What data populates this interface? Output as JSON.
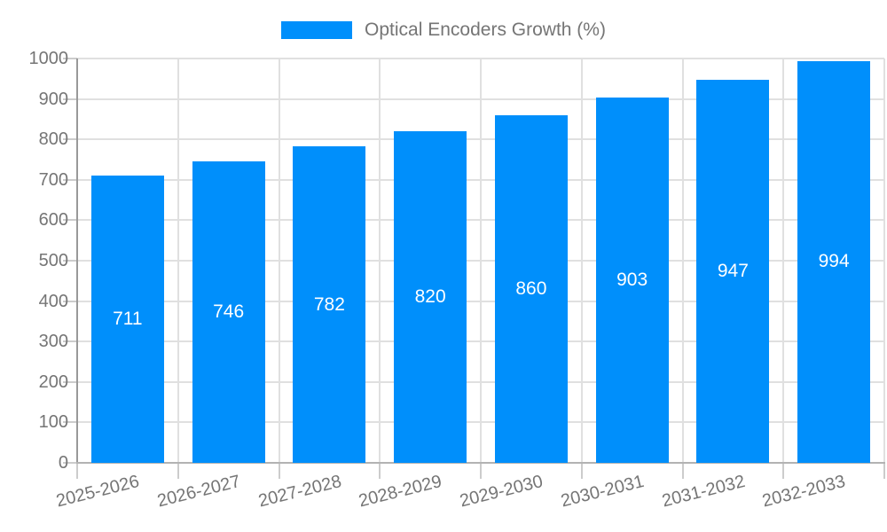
{
  "legend": {
    "label": "Optical Encoders Growth (%)"
  },
  "chart_data": {
    "type": "bar",
    "title": "",
    "categories": [
      "2025-2026",
      "2026-2027",
      "2027-2028",
      "2028-2029",
      "2029-2030",
      "2030-2031",
      "2031-2032",
      "2032-2033"
    ],
    "series": [
      {
        "name": "Optical Encoders Growth (%)",
        "values": [
          711,
          746,
          782,
          820,
          860,
          903,
          947,
          994
        ]
      }
    ],
    "bar_labels": [
      "711",
      "746",
      "782",
      "820",
      "860",
      "903",
      "947",
      "994"
    ],
    "xlabel": "",
    "ylabel": "",
    "ylim": [
      0,
      1000
    ],
    "yticks": [
      0,
      100,
      200,
      300,
      400,
      500,
      600,
      700,
      800,
      900,
      1000
    ],
    "grid": true,
    "legend_position": "top",
    "bar_label_position": "inside-center"
  },
  "colors": {
    "bar": "#008FFB",
    "bar_label": "#ffffff",
    "axis_text": "#757575",
    "grid_line": "#e0e0e0",
    "axis_line_y": "#999999",
    "axis_line_x": "#b3b3b3",
    "tick_line": "#cccccc",
    "background": "#ffffff"
  }
}
